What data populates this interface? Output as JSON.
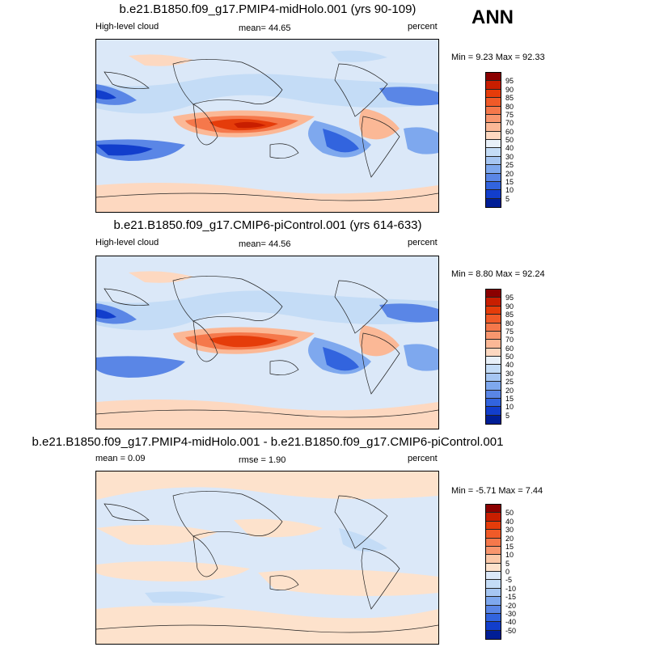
{
  "season": "ANN",
  "panels": [
    {
      "title": "b.e21.B1850.f09_g17.PMIP4-midHolo.001 (yrs 90-109)",
      "left_label": "High-level cloud",
      "center_label": "mean=  44.65",
      "right_label": "percent",
      "minmax": "Min =   9.23 Max =  92.33",
      "levels": [
        "95",
        "90",
        "85",
        "80",
        "75",
        "70",
        "60",
        "50",
        "40",
        "30",
        "25",
        "20",
        "15",
        "10",
        "5"
      ],
      "colors": [
        "#8b0000",
        "#c81e00",
        "#e53c0a",
        "#f05a28",
        "#f5784b",
        "#f8966e",
        "#fbb896",
        "#fdd8c0",
        "#e8f0f8",
        "#c4dcf6",
        "#a6c6f2",
        "#7ea8ee",
        "#5a86e6",
        "#3264de",
        "#123ecc",
        "#001e96"
      ]
    },
    {
      "title": "b.e21.B1850.f09_g17.CMIP6-piControl.001 (yrs 614-633)",
      "left_label": "High-level cloud",
      "center_label": "mean=  44.56",
      "right_label": "percent",
      "minmax": "Min =   8.80 Max =  92.24",
      "levels": [
        "95",
        "90",
        "85",
        "80",
        "75",
        "70",
        "60",
        "50",
        "40",
        "30",
        "25",
        "20",
        "15",
        "10",
        "5"
      ],
      "colors": [
        "#8b0000",
        "#c81e00",
        "#e53c0a",
        "#f05a28",
        "#f5784b",
        "#f8966e",
        "#fbb896",
        "#fdd8c0",
        "#e8f0f8",
        "#c4dcf6",
        "#a6c6f2",
        "#7ea8ee",
        "#5a86e6",
        "#3264de",
        "#123ecc",
        "#001e96"
      ]
    },
    {
      "title": "b.e21.B1850.f09_g17.PMIP4-midHolo.001 - b.e21.B1850.f09_g17.CMIP6-piControl.001",
      "left_label": "mean =   0.09",
      "center_label": "rmse =   1.90",
      "right_label": "percent",
      "minmax": "Min =  -5.71 Max =   7.44",
      "levels": [
        "50",
        "40",
        "30",
        "20",
        "15",
        "10",
        "5",
        "0",
        "-5",
        "-10",
        "-15",
        "-20",
        "-30",
        "-40",
        "-50"
      ],
      "colors": [
        "#8b0000",
        "#c81e00",
        "#e53c0a",
        "#f05a28",
        "#f5784b",
        "#f8966e",
        "#fbc8a8",
        "#fde2cc",
        "#dbe8f8",
        "#c4dcf6",
        "#a6c6f2",
        "#7ea8ee",
        "#5a86e6",
        "#3264de",
        "#123ecc",
        "#001e96"
      ]
    }
  ]
}
